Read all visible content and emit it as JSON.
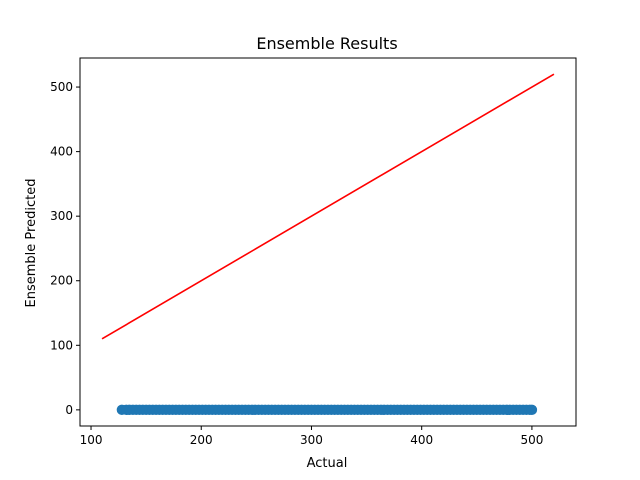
{
  "chart_data": {
    "type": "scatter",
    "title": "Ensemble Results",
    "xlabel": "Actual",
    "ylabel": "Ensemble Predicted",
    "xlim": [
      90,
      540
    ],
    "ylim": [
      -25,
      545
    ],
    "xticks": [
      100,
      200,
      300,
      400,
      500
    ],
    "yticks": [
      0,
      100,
      200,
      300,
      400,
      500
    ],
    "grid": false,
    "series": [
      {
        "kind": "scatter",
        "color": "#1f77b4",
        "x": [
          128,
          132,
          135,
          138,
          141,
          144,
          147,
          150,
          153,
          156,
          159,
          162,
          165,
          168,
          171,
          174,
          177,
          180,
          183,
          186,
          189,
          192,
          195,
          198,
          201,
          204,
          207,
          210,
          213,
          216,
          219,
          222,
          225,
          228,
          231,
          234,
          237,
          240,
          243,
          246,
          249,
          252,
          255,
          258,
          261,
          264,
          267,
          270,
          273,
          276,
          279,
          282,
          285,
          288,
          291,
          294,
          297,
          300,
          303,
          306,
          309,
          312,
          315,
          318,
          321,
          324,
          327,
          330,
          333,
          336,
          339,
          342,
          345,
          348,
          351,
          354,
          357,
          360,
          363,
          366,
          369,
          372,
          375,
          378,
          381,
          384,
          387,
          390,
          393,
          396,
          399,
          402,
          405,
          408,
          411,
          414,
          417,
          420,
          423,
          426,
          429,
          432,
          435,
          438,
          441,
          444,
          447,
          450,
          453,
          456,
          459,
          462,
          465,
          468,
          471,
          474,
          477,
          480,
          483,
          486,
          489,
          492,
          495,
          498,
          500
        ],
        "y": [
          0,
          0,
          0,
          0,
          0,
          0,
          0,
          0,
          0,
          0,
          0,
          0,
          0,
          0,
          0,
          0,
          0,
          0,
          0,
          0,
          0,
          0,
          0,
          0,
          0,
          0,
          0,
          0,
          0,
          0,
          0,
          0,
          0,
          0,
          0,
          0,
          0,
          0,
          0,
          0,
          0,
          0,
          0,
          0,
          0,
          0,
          0,
          0,
          0,
          0,
          0,
          0,
          0,
          0,
          0,
          0,
          0,
          0,
          0,
          0,
          0,
          0,
          0,
          0,
          0,
          0,
          0,
          0,
          0,
          0,
          0,
          0,
          0,
          0,
          0,
          0,
          0,
          0,
          0,
          0,
          0,
          0,
          0,
          0,
          0,
          0,
          0,
          0,
          0,
          0,
          0,
          0,
          0,
          0,
          0,
          0,
          0,
          0,
          0,
          0,
          0,
          0,
          0,
          0,
          0,
          0,
          0,
          0,
          0,
          0,
          0,
          0,
          0,
          0,
          0,
          0,
          0,
          0,
          0,
          0,
          0,
          0,
          0,
          0,
          0
        ]
      },
      {
        "kind": "line",
        "color": "#ff0000",
        "x": [
          110,
          520
        ],
        "y": [
          110,
          520
        ]
      }
    ]
  }
}
